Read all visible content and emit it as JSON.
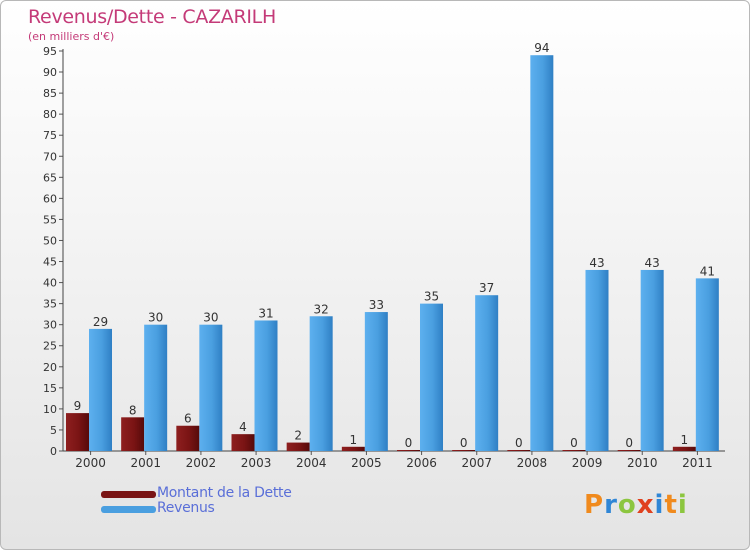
{
  "header": {
    "title": "Revenus/Dette - CAZARILH",
    "subtitle": "(en milliers d'€)"
  },
  "logo": {
    "text": "Proxiti",
    "letters": [
      "P",
      "r",
      "o",
      "x",
      "i",
      "t",
      "i"
    ],
    "colors": [
      "#f08a1d",
      "#2f86d6",
      "#8cc63f",
      "#e0411f",
      "#2f86d6",
      "#f08a1d",
      "#8cc63f"
    ]
  },
  "chart_data": {
    "type": "bar",
    "title": "Revenus/Dette - CAZARILH",
    "subtitle": "(en milliers d'€)",
    "categories": [
      "2000",
      "2001",
      "2002",
      "2003",
      "2004",
      "2005",
      "2006",
      "2007",
      "2008",
      "2009",
      "2010",
      "2011"
    ],
    "series": [
      {
        "name": "Montant de la Dette",
        "color": "#7a1414",
        "values": [
          9,
          8,
          6,
          4,
          2,
          1,
          0,
          0,
          0,
          0,
          0,
          1
        ]
      },
      {
        "name": "Revenus",
        "color": "#4a9fe0",
        "values": [
          29,
          30,
          30,
          31,
          32,
          33,
          35,
          37,
          94,
          43,
          43,
          41
        ]
      }
    ],
    "ylim": [
      0,
      95
    ],
    "yticks": [
      0,
      5,
      10,
      15,
      20,
      25,
      30,
      35,
      40,
      45,
      50,
      55,
      60,
      65,
      70,
      75,
      80,
      85,
      90,
      95
    ],
    "grid": false,
    "legend": "bottom-left"
  }
}
